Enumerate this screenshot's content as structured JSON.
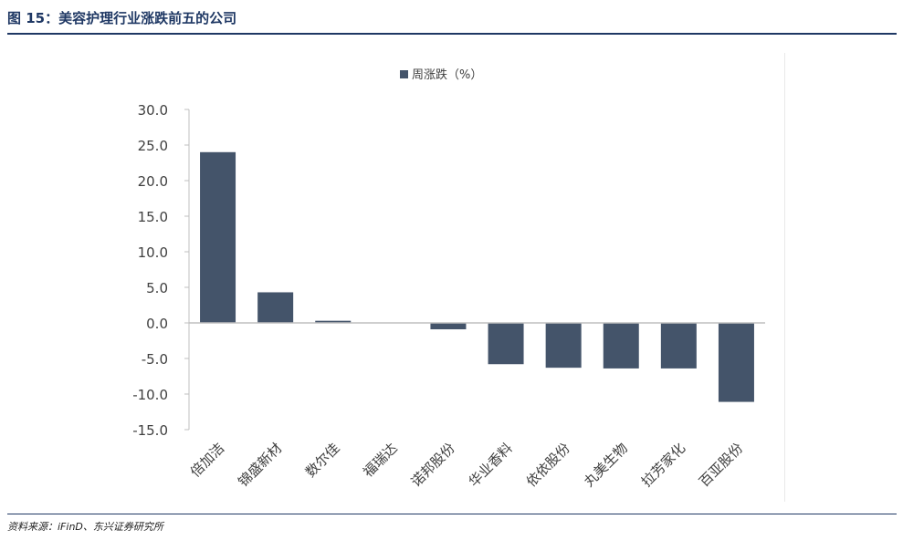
{
  "header": {
    "title": "图 15：美容护理行业涨跌前五的公司"
  },
  "footer": {
    "source": "资料来源：iFinD、东兴证券研究所"
  },
  "colors": {
    "bar": "#44546a",
    "axis": "#bfbfbf",
    "text": "#404040"
  },
  "chart_data": {
    "type": "bar",
    "categories": [
      "倍加洁",
      "锦盛新材",
      "数尔佳",
      "福瑞达",
      "诺邦股份",
      "华业香料",
      "依依股份",
      "丸美生物",
      "拉芳家化",
      "百亚股份"
    ],
    "series": [
      {
        "name": "周涨跌（%）",
        "values": [
          24.0,
          4.3,
          0.3,
          0.0,
          -0.9,
          -5.8,
          -6.3,
          -6.4,
          -6.4,
          -11.1
        ]
      }
    ],
    "ylim": [
      -15,
      30
    ],
    "yticks": [
      "30.0",
      "25.0",
      "20.0",
      "15.0",
      "10.0",
      "5.0",
      "0.0",
      "-5.0",
      "-10.0",
      "-15.0"
    ],
    "legend_position": "top-center",
    "grid": false
  }
}
